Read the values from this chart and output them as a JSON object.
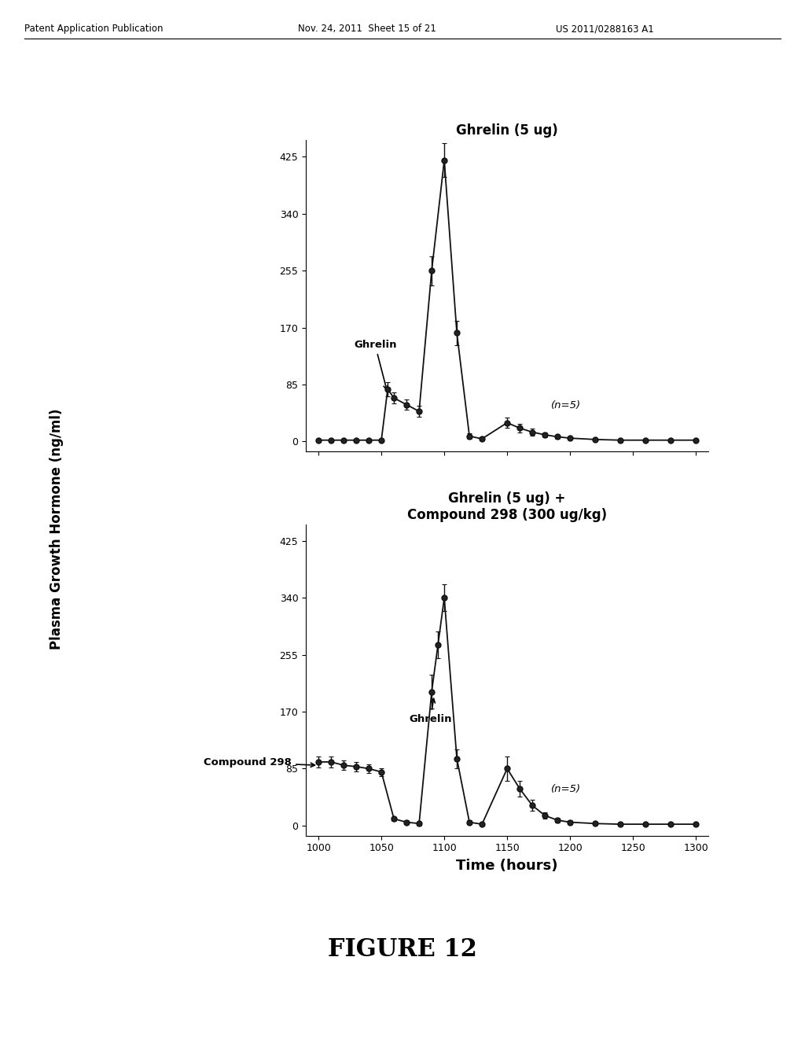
{
  "header_left": "Patent Application Publication",
  "header_mid": "Nov. 24, 2011  Sheet 15 of 21",
  "header_right": "US 2011/0288163 A1",
  "figure_caption": "FIGURE 12",
  "shared_ylabel": "Plasma Growth Hormone (ng/ml)",
  "xlabel": "Time (hours)",
  "xticks": [
    1000,
    1050,
    1100,
    1150,
    1200,
    1250,
    1300
  ],
  "yticks": [
    0,
    85,
    170,
    255,
    340,
    425
  ],
  "xlim": [
    990,
    1310
  ],
  "ylim": [
    -15,
    450
  ],
  "top_title": "Ghrelin (5 ug)",
  "bottom_title": "Ghrelin (5 ug) +\nCompound 298 (300 ug/kg)",
  "top_x": [
    1000,
    1010,
    1020,
    1030,
    1040,
    1050,
    1055,
    1060,
    1070,
    1080,
    1090,
    1100,
    1110,
    1120,
    1130,
    1150,
    1160,
    1170,
    1180,
    1190,
    1200,
    1220,
    1240,
    1260,
    1280,
    1300
  ],
  "top_y": [
    2,
    2,
    2,
    2,
    2,
    2,
    78,
    65,
    55,
    45,
    255,
    420,
    162,
    8,
    4,
    28,
    20,
    14,
    10,
    7,
    5,
    3,
    2,
    2,
    2,
    2
  ],
  "top_yerr": [
    1,
    1,
    1,
    1,
    1,
    1,
    10,
    8,
    8,
    8,
    22,
    25,
    18,
    4,
    2,
    8,
    6,
    5,
    4,
    3,
    2,
    2,
    1,
    1,
    1,
    1
  ],
  "bot_x": [
    1000,
    1010,
    1020,
    1030,
    1040,
    1050,
    1060,
    1070,
    1080,
    1090,
    1095,
    1100,
    1110,
    1120,
    1130,
    1150,
    1160,
    1170,
    1180,
    1190,
    1200,
    1220,
    1240,
    1260,
    1280,
    1300
  ],
  "bot_y": [
    95,
    95,
    90,
    88,
    85,
    80,
    10,
    5,
    3,
    200,
    270,
    340,
    100,
    5,
    2,
    85,
    55,
    30,
    15,
    8,
    5,
    3,
    2,
    2,
    2,
    2
  ],
  "bot_yerr": [
    8,
    8,
    7,
    7,
    6,
    6,
    3,
    3,
    3,
    25,
    20,
    20,
    14,
    3,
    2,
    18,
    12,
    8,
    5,
    4,
    3,
    2,
    1,
    1,
    1,
    1
  ],
  "line_color": "#111111",
  "marker": "o",
  "markersize": 5,
  "bg_color": "#ffffff"
}
